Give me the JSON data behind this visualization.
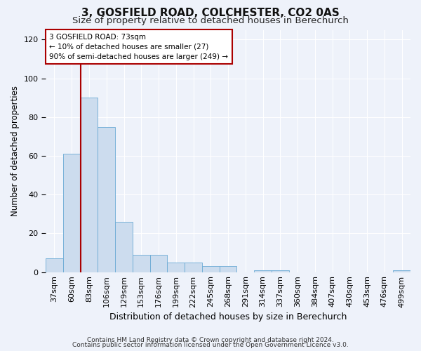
{
  "title1": "3, GOSFIELD ROAD, COLCHESTER, CO2 0AS",
  "title2": "Size of property relative to detached houses in Berechurch",
  "xlabel": "Distribution of detached houses by size in Berechurch",
  "ylabel": "Number of detached properties",
  "bar_labels": [
    "37sqm",
    "60sqm",
    "83sqm",
    "106sqm",
    "129sqm",
    "153sqm",
    "176sqm",
    "199sqm",
    "222sqm",
    "245sqm",
    "268sqm",
    "291sqm",
    "314sqm",
    "337sqm",
    "360sqm",
    "384sqm",
    "407sqm",
    "430sqm",
    "453sqm",
    "476sqm",
    "499sqm"
  ],
  "bar_heights": [
    7,
    61,
    90,
    75,
    26,
    9,
    9,
    5,
    5,
    3,
    3,
    0,
    1,
    1,
    0,
    0,
    0,
    0,
    0,
    0,
    1
  ],
  "bar_color": "#ccdcee",
  "bar_edge_color": "#6aaad4",
  "vline_x": 1.5,
  "vline_color": "#aa0000",
  "annotation_text": "3 GOSFIELD ROAD: 73sqm\n← 10% of detached houses are smaller (27)\n90% of semi-detached houses are larger (249) →",
  "annotation_edge_color": "#aa0000",
  "ylim": [
    0,
    125
  ],
  "yticks": [
    0,
    20,
    40,
    60,
    80,
    100,
    120
  ],
  "background_color": "#eef2fa",
  "grid_color": "#ffffff",
  "title1_fontsize": 11,
  "title2_fontsize": 9.5,
  "xlabel_fontsize": 9,
  "ylabel_fontsize": 8.5,
  "tick_fontsize": 8,
  "ann_fontsize": 7.5,
  "footer_fontsize": 6.5,
  "footer1": "Contains HM Land Registry data © Crown copyright and database right 2024.",
  "footer2": "Contains public sector information licensed under the Open Government Licence v3.0."
}
